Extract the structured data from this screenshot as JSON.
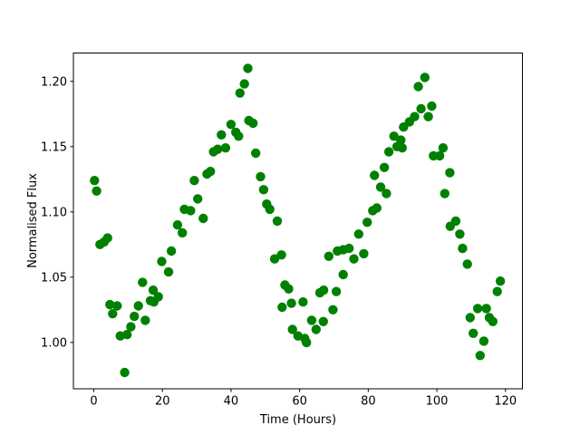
{
  "chart_data": {
    "type": "scatter",
    "title": "",
    "xlabel": "Time (Hours)",
    "ylabel": "Normalised Flux",
    "xlim": [
      -5.95,
      124.95
    ],
    "ylim": [
      0.9645,
      1.2217
    ],
    "xticks": {
      "values": [
        0,
        20,
        40,
        60,
        80,
        100,
        120
      ],
      "labels": [
        "0",
        "20",
        "40",
        "60",
        "80",
        "100",
        "120"
      ]
    },
    "yticks": {
      "values": [
        1.0,
        1.05,
        1.1,
        1.15,
        1.2
      ],
      "labels": [
        "1.00",
        "1.05",
        "1.10",
        "1.15",
        "1.20"
      ]
    },
    "grid": false,
    "legend": "none",
    "background": "#ffffff",
    "axis_color": "#000000",
    "marker": {
      "shape": "circle",
      "color": "#008000",
      "radius_px": 5.2
    },
    "series": [
      {
        "name": "normalised-flux",
        "points": [
          [
            0.2,
            1.124
          ],
          [
            0.8,
            1.116
          ],
          [
            1.8,
            1.075
          ],
          [
            3.0,
            1.077
          ],
          [
            4.0,
            1.08
          ],
          [
            4.7,
            1.029
          ],
          [
            5.5,
            1.022
          ],
          [
            6.8,
            1.028
          ],
          [
            7.7,
            1.005
          ],
          [
            9.0,
            0.977
          ],
          [
            9.7,
            1.006
          ],
          [
            10.8,
            1.012
          ],
          [
            11.8,
            1.02
          ],
          [
            13.0,
            1.028
          ],
          [
            14.2,
            1.046
          ],
          [
            15.0,
            1.017
          ],
          [
            16.5,
            1.032
          ],
          [
            17.3,
            1.04
          ],
          [
            17.5,
            1.031
          ],
          [
            18.8,
            1.035
          ],
          [
            19.8,
            1.062
          ],
          [
            21.8,
            1.054
          ],
          [
            22.6,
            1.07
          ],
          [
            24.4,
            1.09
          ],
          [
            25.8,
            1.084
          ],
          [
            26.4,
            1.102
          ],
          [
            28.2,
            1.101
          ],
          [
            29.3,
            1.124
          ],
          [
            30.3,
            1.11
          ],
          [
            31.9,
            1.095
          ],
          [
            33.0,
            1.129
          ],
          [
            34.0,
            1.131
          ],
          [
            34.9,
            1.146
          ],
          [
            36.1,
            1.148
          ],
          [
            37.2,
            1.159
          ],
          [
            38.4,
            1.149
          ],
          [
            40.0,
            1.167
          ],
          [
            41.4,
            1.161
          ],
          [
            42.2,
            1.158
          ],
          [
            42.6,
            1.191
          ],
          [
            43.9,
            1.198
          ],
          [
            44.9,
            1.21
          ],
          [
            45.2,
            1.17
          ],
          [
            46.4,
            1.168
          ],
          [
            47.2,
            1.145
          ],
          [
            48.6,
            1.127
          ],
          [
            49.5,
            1.117
          ],
          [
            50.4,
            1.106
          ],
          [
            51.3,
            1.102
          ],
          [
            52.7,
            1.064
          ],
          [
            53.5,
            1.093
          ],
          [
            54.7,
            1.067
          ],
          [
            54.9,
            1.027
          ],
          [
            55.7,
            1.044
          ],
          [
            56.8,
            1.041
          ],
          [
            57.6,
            1.03
          ],
          [
            57.9,
            1.01
          ],
          [
            59.5,
            1.005
          ],
          [
            61.0,
            1.031
          ],
          [
            61.5,
            1.003
          ],
          [
            62.0,
            1.0
          ],
          [
            63.5,
            1.017
          ],
          [
            64.8,
            1.01
          ],
          [
            65.9,
            1.038
          ],
          [
            66.9,
            1.016
          ],
          [
            67.0,
            1.04
          ],
          [
            68.5,
            1.066
          ],
          [
            69.7,
            1.025
          ],
          [
            70.7,
            1.039
          ],
          [
            71.0,
            1.07
          ],
          [
            72.7,
            1.052
          ],
          [
            72.7,
            1.071
          ],
          [
            74.4,
            1.072
          ],
          [
            75.8,
            1.064
          ],
          [
            77.2,
            1.083
          ],
          [
            78.7,
            1.068
          ],
          [
            79.7,
            1.092
          ],
          [
            81.3,
            1.101
          ],
          [
            81.8,
            1.128
          ],
          [
            82.5,
            1.103
          ],
          [
            83.6,
            1.119
          ],
          [
            84.7,
            1.134
          ],
          [
            85.3,
            1.114
          ],
          [
            86.0,
            1.146
          ],
          [
            87.5,
            1.158
          ],
          [
            88.4,
            1.15
          ],
          [
            89.5,
            1.155
          ],
          [
            89.9,
            1.149
          ],
          [
            90.3,
            1.165
          ],
          [
            92.0,
            1.169
          ],
          [
            93.5,
            1.173
          ],
          [
            94.6,
            1.196
          ],
          [
            95.4,
            1.179
          ],
          [
            96.5,
            1.203
          ],
          [
            97.5,
            1.173
          ],
          [
            98.5,
            1.181
          ],
          [
            99.0,
            1.143
          ],
          [
            100.8,
            1.143
          ],
          [
            101.8,
            1.149
          ],
          [
            102.3,
            1.114
          ],
          [
            103.8,
            1.13
          ],
          [
            103.9,
            1.089
          ],
          [
            105.5,
            1.093
          ],
          [
            106.7,
            1.083
          ],
          [
            107.5,
            1.072
          ],
          [
            108.9,
            1.06
          ],
          [
            109.7,
            1.019
          ],
          [
            110.6,
            1.007
          ],
          [
            111.9,
            1.026
          ],
          [
            112.6,
            0.99
          ],
          [
            113.7,
            1.001
          ],
          [
            114.4,
            1.026
          ],
          [
            115.3,
            1.019
          ],
          [
            116.3,
            1.016
          ],
          [
            117.6,
            1.039
          ],
          [
            118.5,
            1.047
          ]
        ]
      }
    ]
  }
}
